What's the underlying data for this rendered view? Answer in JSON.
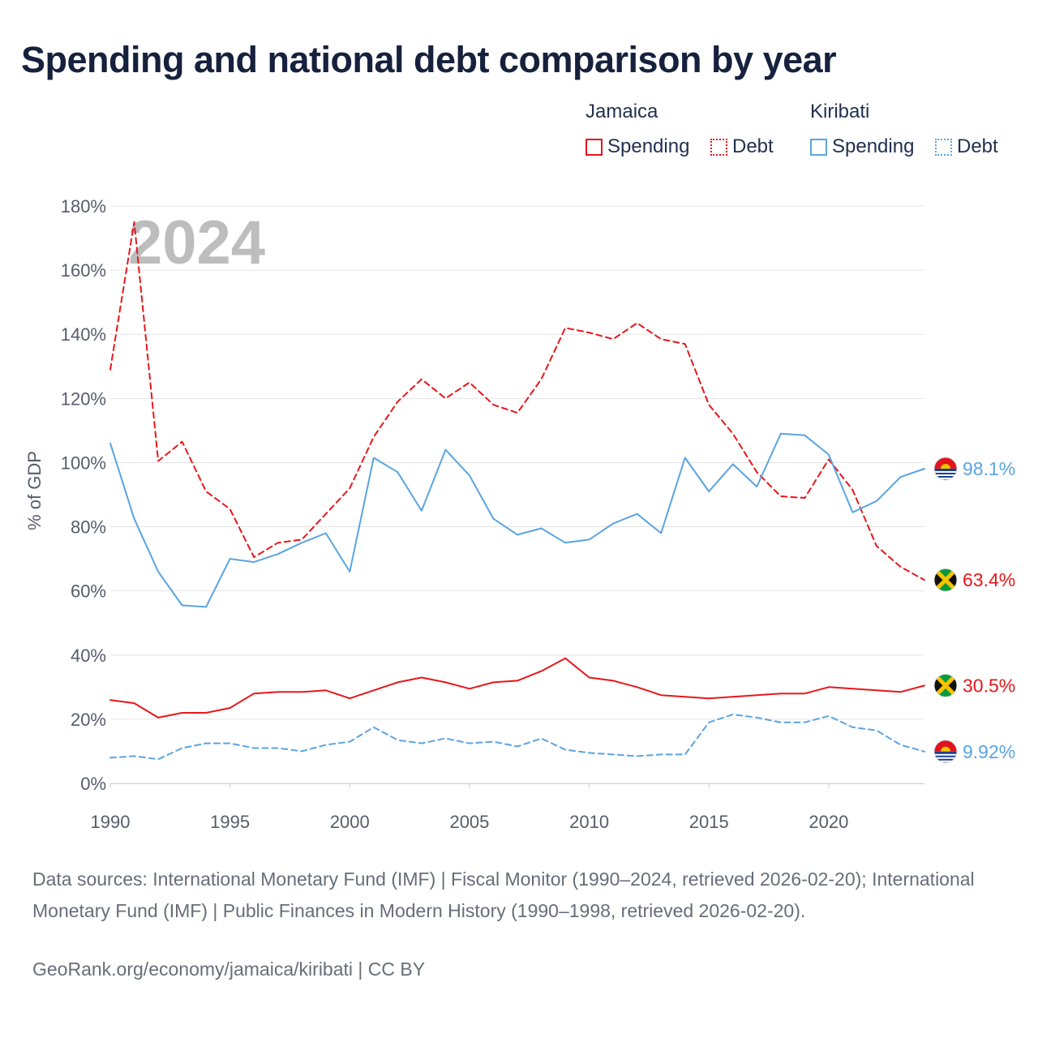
{
  "title": "Spending and national debt comparison by year",
  "legend": {
    "groups": [
      {
        "country": "Jamaica",
        "items": [
          {
            "label": "Spending",
            "style": "solid",
            "color": "#e8161b"
          },
          {
            "label": "Debt",
            "style": "dotted",
            "color": "#e8161b"
          }
        ]
      },
      {
        "country": "Kiribati",
        "items": [
          {
            "label": "Spending",
            "style": "solid",
            "color": "#5aa4e2"
          },
          {
            "label": "Debt",
            "style": "dotted",
            "color": "#5aa4e2"
          }
        ]
      }
    ]
  },
  "colors": {
    "jamaica": "#e8161b",
    "kiribati": "#5aa4e2",
    "grid": "#e4e4e4",
    "title": "#16213d"
  },
  "chart_data": {
    "type": "line",
    "title": "Spending and national debt comparison by year",
    "ylabel": "% of GDP",
    "xlabel": "",
    "ylim": [
      0,
      180
    ],
    "xlim": [
      1990,
      2024
    ],
    "yticks": [
      0,
      20,
      40,
      60,
      80,
      100,
      120,
      140,
      160,
      180
    ],
    "ytick_labels": [
      "0%",
      "20%",
      "40%",
      "60%",
      "80%",
      "100%",
      "120%",
      "140%",
      "160%",
      "180%"
    ],
    "xticks": [
      1990,
      1995,
      2000,
      2005,
      2010,
      2015,
      2020
    ],
    "xtick_labels": [
      "1990",
      "1995",
      "2000",
      "2005",
      "2010",
      "2015",
      "2020"
    ],
    "grid": true,
    "watermark_year": "2024",
    "x": [
      1990,
      1991,
      1992,
      1993,
      1994,
      1995,
      1996,
      1997,
      1998,
      1999,
      2000,
      2001,
      2002,
      2003,
      2004,
      2005,
      2006,
      2007,
      2008,
      2009,
      2010,
      2011,
      2012,
      2013,
      2014,
      2015,
      2016,
      2017,
      2018,
      2019,
      2020,
      2021,
      2022,
      2023,
      2024
    ],
    "series": [
      {
        "name": "Jamaica Debt",
        "country": "Jamaica",
        "metric": "Debt",
        "style": "dashed",
        "color": "#e8161b",
        "end_label": "63.4%",
        "values": [
          129,
          175,
          100.5,
          106.5,
          91,
          85.5,
          70.5,
          75,
          76,
          84,
          92,
          108,
          119,
          126,
          120,
          125,
          118,
          115.5,
          126,
          142,
          140.5,
          138.5,
          143.5,
          138.5,
          137,
          118,
          109,
          97,
          89.5,
          89,
          101,
          91.5,
          74,
          67.5,
          63.4
        ]
      },
      {
        "name": "Kiribati Spending",
        "country": "Kiribati",
        "metric": "Spending",
        "style": "solid",
        "color": "#5aa4e2",
        "end_label": "98.1%",
        "values": [
          106,
          82.5,
          66,
          55.5,
          55,
          70,
          69,
          71.5,
          75,
          78,
          66,
          101.5,
          97,
          85,
          104,
          96,
          82.5,
          77.5,
          79.5,
          75,
          76,
          81,
          84,
          78,
          101.5,
          91,
          99.5,
          92.5,
          109,
          108.5,
          102.5,
          84.5,
          88,
          95.5,
          98.1
        ]
      },
      {
        "name": "Jamaica Spending",
        "country": "Jamaica",
        "metric": "Spending",
        "style": "solid",
        "color": "#e8161b",
        "end_label": "30.5%",
        "values": [
          26,
          25,
          20.5,
          22,
          22,
          23.5,
          28,
          28.5,
          28.5,
          29,
          26.5,
          29,
          31.5,
          33,
          31.5,
          29.5,
          31.5,
          32,
          35,
          39,
          33,
          32,
          30,
          27.5,
          27,
          26.5,
          27,
          27.5,
          28,
          28,
          30,
          29.5,
          29,
          28.5,
          30.5
        ]
      },
      {
        "name": "Kiribati Debt",
        "country": "Kiribati",
        "metric": "Debt",
        "style": "dashed",
        "color": "#5aa4e2",
        "end_label": "9.92%",
        "values": [
          8,
          8.5,
          7.5,
          11,
          12.5,
          12.5,
          11,
          11,
          10,
          12,
          13,
          17.5,
          13.5,
          12.5,
          14,
          12.5,
          13,
          11.5,
          14,
          10.5,
          9.5,
          9,
          8.5,
          9,
          9,
          19,
          21.5,
          20.5,
          19,
          19,
          21,
          17.5,
          16.5,
          12,
          9.92
        ]
      }
    ]
  },
  "footer": {
    "sources": "Data sources: International Monetary Fund (IMF) | Fiscal Monitor (1990–2024, retrieved 2026-02-20); International Monetary Fund (IMF) | Public Finances in Modern History (1990–1998, retrieved 2026-02-20).",
    "credit": "GeoRank.org/economy/jamaica/kiribati | CC BY"
  }
}
